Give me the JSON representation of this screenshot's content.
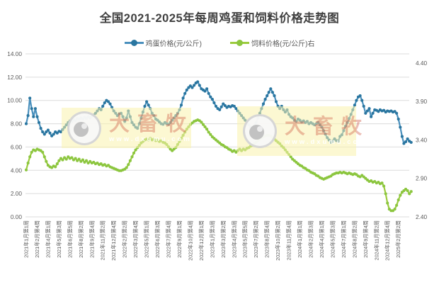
{
  "title": "全国2021-2025年每周鸡蛋和饲料价格走势图",
  "legend": [
    {
      "label": "鸡蛋价格(元/公斤)"
    },
    {
      "label": "饲料价格(元/公斤)右"
    }
  ],
  "watermark": {
    "brand": "大畜牧",
    "url": "www.dxumu.com"
  },
  "chart_data": {
    "type": "line",
    "title": "全国2021-2025年每周鸡蛋和饲料价格走势图",
    "grid": true,
    "legend_position": "top",
    "left_axis": {
      "min": 0,
      "max": 14,
      "step": 2,
      "labels": [
        "0.00",
        "2.00",
        "4.00",
        "6.00",
        "8.00",
        "10.00",
        "12.00",
        "14.00"
      ]
    },
    "right_axis": {
      "min": 2.4,
      "max": 4.5,
      "step": 0.5,
      "labels": [
        "2.40",
        "2.90",
        "3.40",
        "3.90",
        "4.40"
      ]
    },
    "x_tick_every": 6,
    "x_tick_labels": [
      "2021年1月第1周",
      "2021年2月第4周",
      "2021年4月第1周",
      "2021年5月第3周",
      "2021年6月第5周",
      "2021年8月第2周",
      "2021年9月第4周",
      "2021年11月第2周",
      "2021年12月第4周",
      "2022年2月第2周",
      "2022年3月第4周",
      "2022年5月第1周",
      "2022年6月第3周",
      "2022年7月第4周",
      "2022年9月第1周",
      "2022年10月第4周",
      "2022年12月第1周",
      "2023年1月第3周",
      "2023年3月第2周",
      "2023年4月第3周",
      "2023年5月第5周",
      "2023年7月第2周",
      "2023年8月第4周",
      "2023年10月第2周",
      "2023年11月第4周",
      "2024年1月第1周",
      "2024年2月第3周",
      "2024年4月第1周",
      "2024年5月第3周",
      "2024年7月第1周",
      "2024年8月第2周",
      "2024年9月第4周",
      "2024年11月第2周",
      "2024年12月第4周",
      "2025年2月第2周"
    ],
    "series": [
      {
        "name": "鸡蛋价格(元/公斤)",
        "axis": "left",
        "line_color": "#4A90BD",
        "marker_color": "#2A76A0",
        "values": [
          8.0,
          8.7,
          10.2,
          9.3,
          8.6,
          9.3,
          8.6,
          8.1,
          7.6,
          7.3,
          7.1,
          7.3,
          7.45,
          7.2,
          6.95,
          7.1,
          7.3,
          7.2,
          7.35,
          7.3,
          7.5,
          7.7,
          7.9,
          8.1,
          8.25,
          8.15,
          8.35,
          8.25,
          8.45,
          8.35,
          8.5,
          8.4,
          8.55,
          8.45,
          8.6,
          8.5,
          8.65,
          8.75,
          8.9,
          9.1,
          9.3,
          9.2,
          9.5,
          9.8,
          10.0,
          9.9,
          9.7,
          9.4,
          9.1,
          8.9,
          8.7,
          8.85,
          8.9,
          8.6,
          8.2,
          8.5,
          9.1,
          8.6,
          8.1,
          7.9,
          7.7,
          7.6,
          8.0,
          8.5,
          9.0,
          9.5,
          9.9,
          9.6,
          9.3,
          8.9,
          8.7,
          8.4,
          8.3,
          8.15,
          8.0,
          7.95,
          8.1,
          8.0,
          7.95,
          8.1,
          8.3,
          8.5,
          8.7,
          8.9,
          9.2,
          9.6,
          10.2,
          10.6,
          10.9,
          11.1,
          11.25,
          11.1,
          11.3,
          11.5,
          11.6,
          11.3,
          11.0,
          10.9,
          10.8,
          11.0,
          10.6,
          10.3,
          10.1,
          9.8,
          9.5,
          9.3,
          9.2,
          9.45,
          9.7,
          9.55,
          9.4,
          9.5,
          9.45,
          9.55,
          9.5,
          9.3,
          9.1,
          8.9,
          8.7,
          8.5,
          8.3,
          8.1,
          7.9,
          7.7,
          7.6,
          7.8,
          8.1,
          8.5,
          8.9,
          9.3,
          9.7,
          10.1,
          10.4,
          10.7,
          11.0,
          10.7,
          10.4,
          9.9,
          9.5,
          9.3,
          9.5,
          9.2,
          9.0,
          9.2,
          8.8,
          8.6,
          8.5,
          8.3,
          8.2,
          8.4,
          8.3,
          8.15,
          8.25,
          8.1,
          8.2,
          8.0,
          8.1,
          8.0,
          7.9,
          8.0,
          8.1,
          7.9,
          7.7,
          7.4,
          7.1,
          6.8,
          6.6,
          6.4,
          6.5,
          6.7,
          6.55,
          6.5,
          6.9,
          7.05,
          7.4,
          7.8,
          8.1,
          8.45,
          8.8,
          9.2,
          9.6,
          10.0,
          10.3,
          10.4,
          10.0,
          9.5,
          8.9,
          9.1,
          9.3,
          8.6,
          8.9,
          9.2,
          9.15,
          9.05,
          9.2,
          9.1,
          9.15,
          9.0,
          9.1,
          9.05,
          9.1,
          9.0,
          9.05,
          8.9,
          8.4,
          7.7,
          6.9,
          6.3,
          6.45,
          6.7,
          6.5,
          6.4
        ]
      },
      {
        "name": "饲料价格(元/公斤)右",
        "axis": "right",
        "line_color": "#9CCB3D",
        "marker_color": "#8CC63F",
        "values": [
          3.01,
          3.1,
          3.18,
          3.24,
          3.27,
          3.26,
          3.28,
          3.27,
          3.26,
          3.24,
          3.18,
          3.12,
          3.07,
          3.05,
          3.04,
          3.06,
          3.05,
          3.09,
          3.13,
          3.16,
          3.14,
          3.17,
          3.15,
          3.18,
          3.16,
          3.17,
          3.14,
          3.16,
          3.13,
          3.15,
          3.12,
          3.14,
          3.11,
          3.13,
          3.1,
          3.12,
          3.1,
          3.11,
          3.09,
          3.1,
          3.08,
          3.09,
          3.07,
          3.08,
          3.06,
          3.07,
          3.05,
          3.04,
          3.03,
          3.02,
          3.01,
          3.0,
          3.0,
          3.01,
          3.02,
          3.04,
          3.08,
          3.13,
          3.18,
          3.23,
          3.27,
          3.3,
          3.33,
          3.36,
          3.38,
          3.4,
          3.41,
          3.4,
          3.42,
          3.4,
          3.41,
          3.39,
          3.4,
          3.38,
          3.39,
          3.37,
          3.36,
          3.34,
          3.31,
          3.28,
          3.26,
          3.28,
          3.3,
          3.34,
          3.38,
          3.42,
          3.46,
          3.5,
          3.54,
          3.57,
          3.6,
          3.62,
          3.64,
          3.65,
          3.66,
          3.65,
          3.63,
          3.6,
          3.57,
          3.54,
          3.5,
          3.47,
          3.44,
          3.42,
          3.4,
          3.38,
          3.36,
          3.34,
          3.33,
          3.31,
          3.3,
          3.28,
          3.27,
          3.25,
          3.26,
          3.24,
          3.26,
          3.28,
          3.26,
          3.28,
          3.27,
          3.29,
          3.3,
          3.32,
          3.33,
          3.35,
          3.37,
          3.39,
          3.41,
          3.43,
          3.44,
          3.45,
          3.46,
          3.46,
          3.45,
          3.43,
          3.41,
          3.39,
          3.37,
          3.35,
          3.32,
          3.3,
          3.27,
          3.24,
          3.21,
          3.18,
          3.15,
          3.13,
          3.11,
          3.09,
          3.07,
          3.06,
          3.04,
          3.03,
          3.01,
          3.0,
          2.98,
          2.97,
          2.96,
          2.94,
          2.93,
          2.91,
          2.9,
          2.89,
          2.9,
          2.91,
          2.92,
          2.93,
          2.95,
          2.96,
          2.97,
          2.97,
          2.98,
          2.97,
          2.98,
          2.97,
          2.96,
          2.97,
          2.96,
          2.95,
          2.96,
          2.95,
          2.93,
          2.92,
          2.94,
          2.92,
          2.9,
          2.88,
          2.86,
          2.87,
          2.85,
          2.86,
          2.84,
          2.85,
          2.83,
          2.84,
          2.8,
          2.7,
          2.58,
          2.5,
          2.48,
          2.48,
          2.5,
          2.55,
          2.62,
          2.68,
          2.72,
          2.74,
          2.76,
          2.74,
          2.7,
          2.73
        ]
      }
    ]
  }
}
